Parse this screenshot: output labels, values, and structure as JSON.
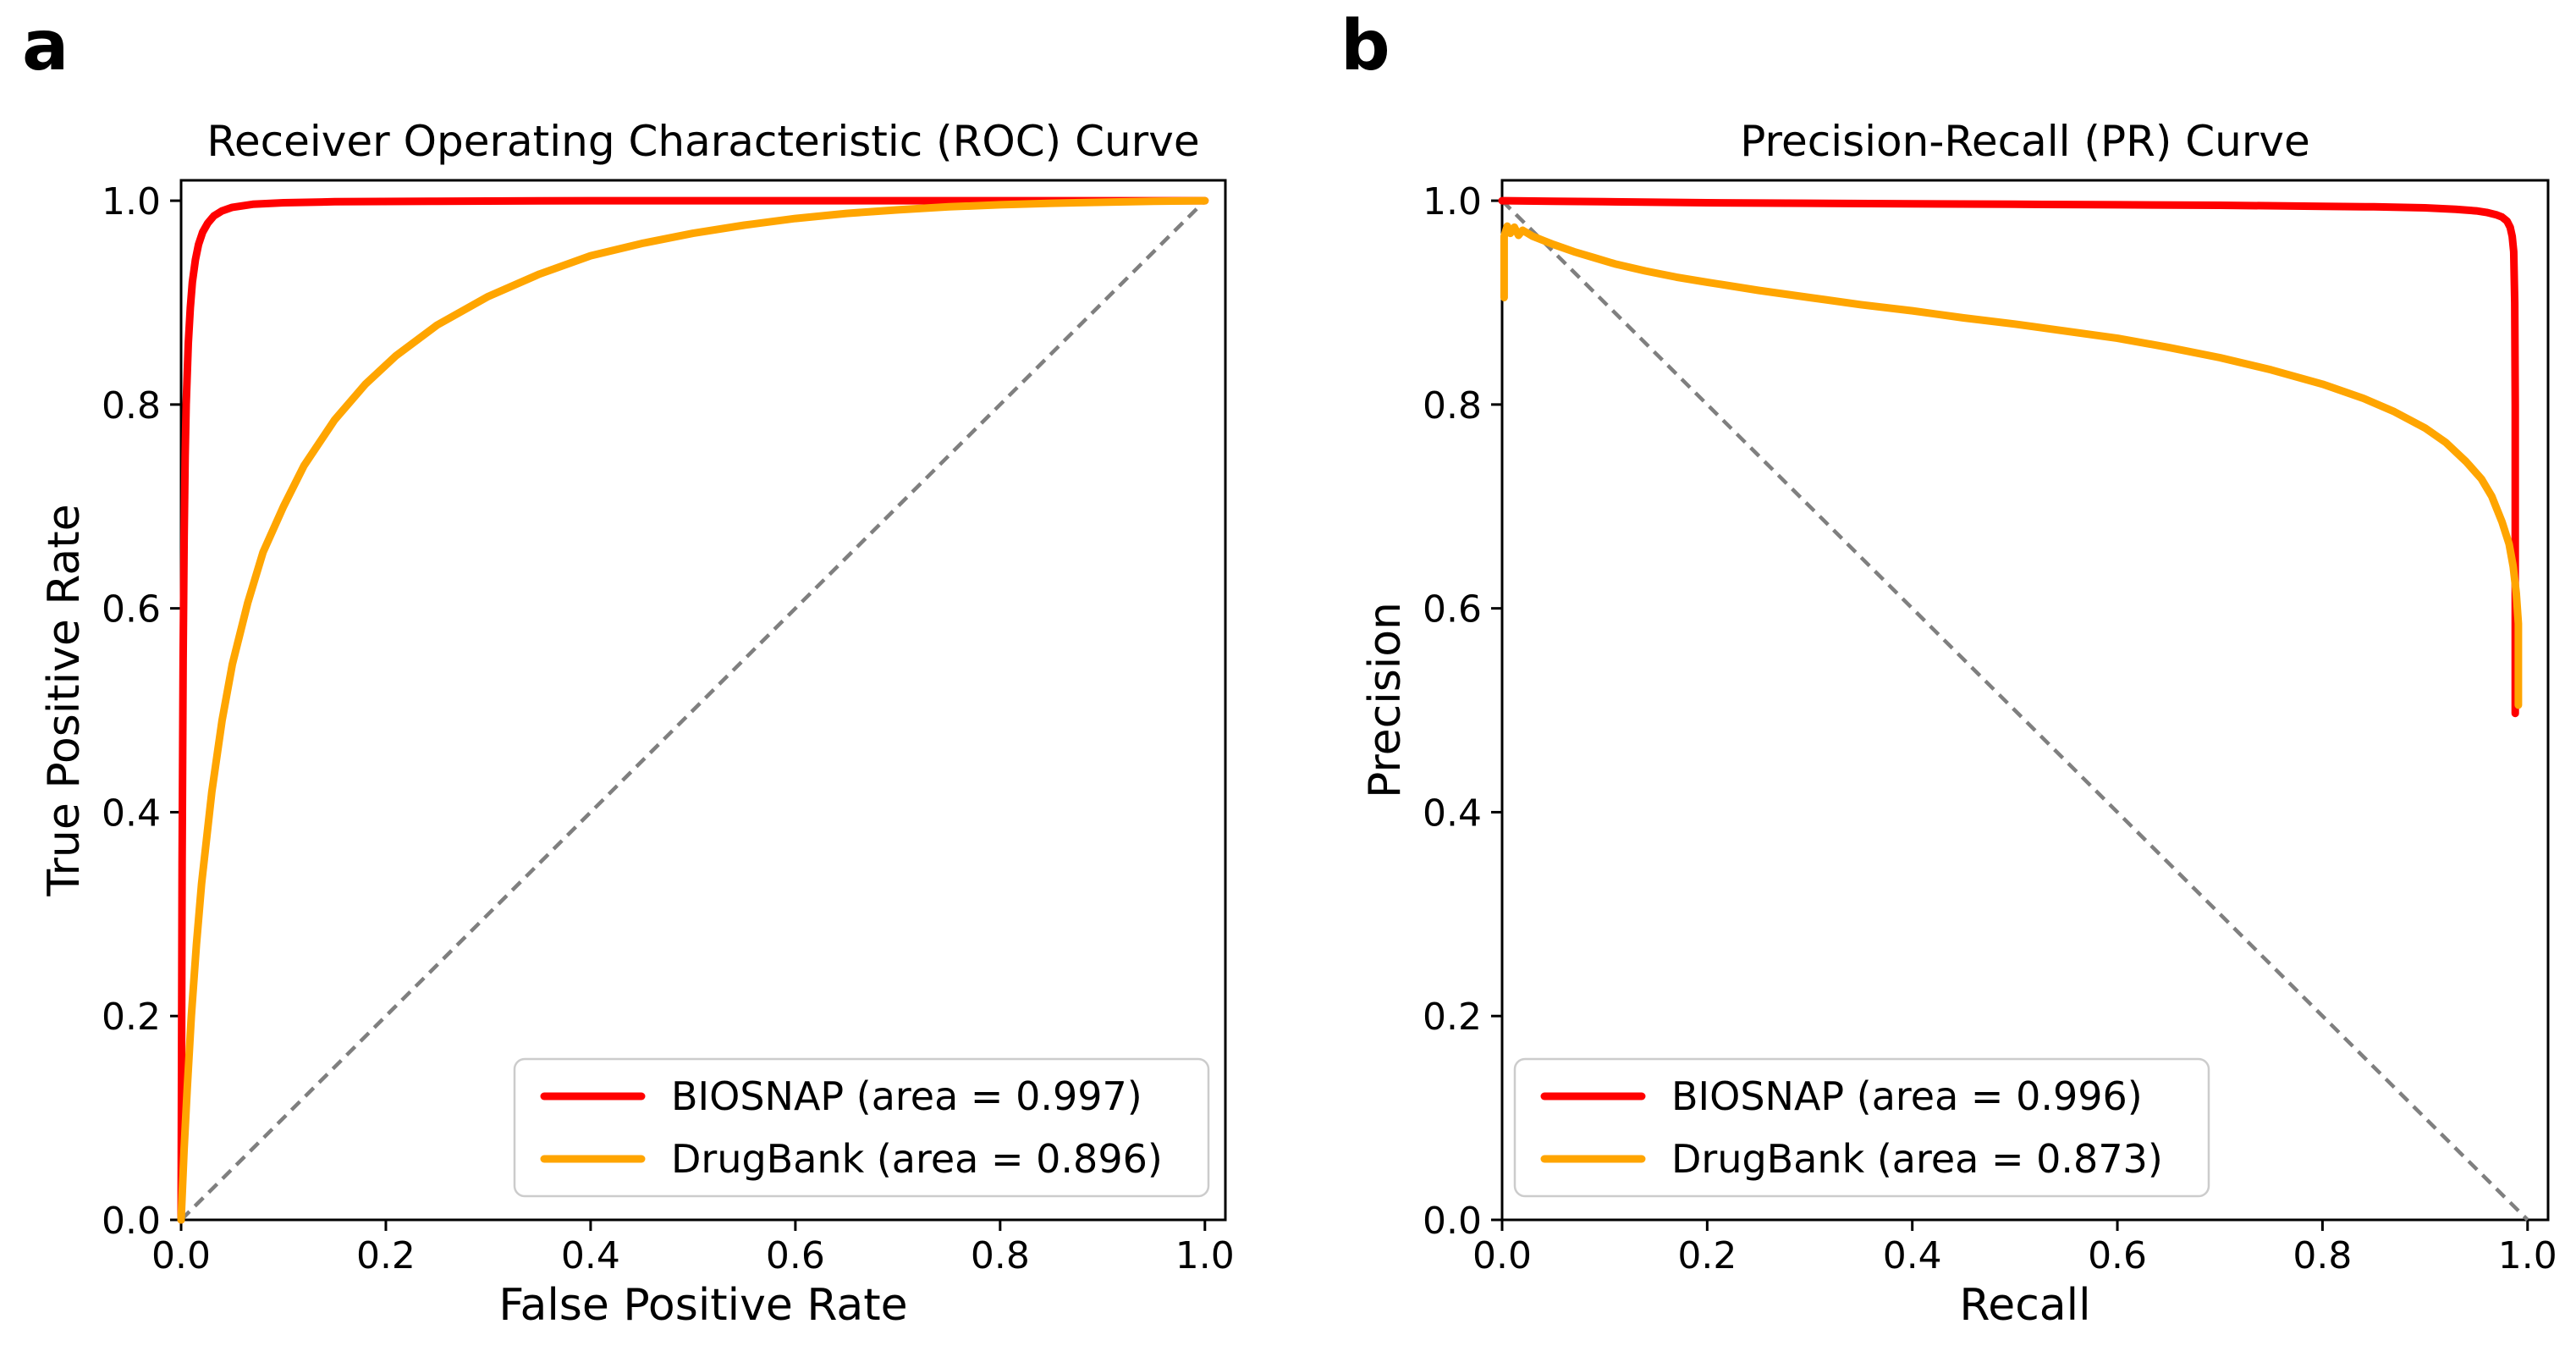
{
  "figure": {
    "background": "#ffffff",
    "panels": [
      {
        "letter": "a"
      },
      {
        "letter": "b"
      }
    ]
  },
  "chart_data": [
    {
      "type": "line",
      "title": "Receiver Operating Characteristic (ROC) Curve",
      "xlabel": "False Positive Rate",
      "ylabel": "True Positive Rate",
      "xlim": [
        0,
        1
      ],
      "ylim": [
        0,
        1
      ],
      "grid": false,
      "legend_position": "lower right",
      "xticks": {
        "values": [
          0.0,
          0.2,
          0.4,
          0.6,
          0.8,
          1.0
        ],
        "labels": [
          "0.0",
          "0.2",
          "0.4",
          "0.6",
          "0.8",
          "1.0"
        ]
      },
      "yticks": {
        "values": [
          0.0,
          0.2,
          0.4,
          0.6,
          0.8,
          1.0
        ],
        "labels": [
          "0.0",
          "0.2",
          "0.4",
          "0.6",
          "0.8",
          "1.0"
        ]
      },
      "series": [
        {
          "key": "chance-diagonal",
          "name": "chance",
          "color": "#7f7f7f",
          "dash": true,
          "legend": false,
          "x": [
            0,
            1
          ],
          "y": [
            0,
            1
          ]
        },
        {
          "key": "biosnap",
          "name": "BIOSNAP (area = 0.997)",
          "color": "#ff0000",
          "dash": false,
          "legend": true,
          "x": [
            0,
            0.001,
            0.002,
            0.003,
            0.004,
            0.005,
            0.007,
            0.009,
            0.011,
            0.014,
            0.017,
            0.021,
            0.026,
            0.032,
            0.04,
            0.05,
            0.07,
            0.1,
            0.15,
            0.25,
            0.4,
            0.6,
            0.8,
            1.0
          ],
          "y": [
            0,
            0.35,
            0.55,
            0.67,
            0.75,
            0.8,
            0.86,
            0.895,
            0.92,
            0.942,
            0.957,
            0.969,
            0.978,
            0.985,
            0.99,
            0.9935,
            0.9965,
            0.998,
            0.999,
            0.9995,
            1.0,
            1.0,
            1.0,
            1.0
          ]
        },
        {
          "key": "drugbank",
          "name": "DrugBank (area = 0.896)",
          "color": "#ffa500",
          "dash": false,
          "legend": true,
          "x": [
            0,
            0.003,
            0.006,
            0.01,
            0.015,
            0.02,
            0.03,
            0.04,
            0.05,
            0.065,
            0.08,
            0.1,
            0.12,
            0.15,
            0.18,
            0.21,
            0.25,
            0.3,
            0.35,
            0.4,
            0.45,
            0.5,
            0.55,
            0.6,
            0.65,
            0.7,
            0.75,
            0.8,
            0.85,
            0.9,
            0.95,
            1.0
          ],
          "y": [
            0,
            0.07,
            0.13,
            0.2,
            0.27,
            0.33,
            0.42,
            0.49,
            0.545,
            0.605,
            0.655,
            0.7,
            0.74,
            0.785,
            0.82,
            0.848,
            0.878,
            0.906,
            0.928,
            0.946,
            0.958,
            0.968,
            0.976,
            0.9825,
            0.9875,
            0.991,
            0.994,
            0.996,
            0.9975,
            0.9985,
            0.9995,
            1.0
          ]
        }
      ]
    },
    {
      "type": "line",
      "title": "Precision-Recall (PR) Curve",
      "xlabel": "Recall",
      "ylabel": "Precision",
      "xlim": [
        0,
        1
      ],
      "ylim": [
        0,
        1
      ],
      "grid": false,
      "legend_position": "lower left",
      "xticks": {
        "values": [
          0.0,
          0.2,
          0.4,
          0.6,
          0.8,
          1.0
        ],
        "labels": [
          "0.0",
          "0.2",
          "0.4",
          "0.6",
          "0.8",
          "1.0"
        ]
      },
      "yticks": {
        "values": [
          0.0,
          0.2,
          0.4,
          0.6,
          0.8,
          1.0
        ],
        "labels": [
          "0.0",
          "0.2",
          "0.4",
          "0.6",
          "0.8",
          "1.0"
        ]
      },
      "series": [
        {
          "key": "chance-diagonal",
          "name": "chance",
          "color": "#7f7f7f",
          "dash": true,
          "legend": false,
          "x": [
            0,
            1
          ],
          "y": [
            1,
            0
          ]
        },
        {
          "key": "biosnap",
          "name": "BIOSNAP (area = 0.996)",
          "color": "#ff0000",
          "dash": false,
          "legend": true,
          "x": [
            0,
            0.05,
            0.1,
            0.2,
            0.3,
            0.4,
            0.5,
            0.6,
            0.7,
            0.8,
            0.85,
            0.9,
            0.93,
            0.95,
            0.96,
            0.97,
            0.975,
            0.98,
            0.983,
            0.985,
            0.9865,
            0.9875,
            0.988,
            0.988,
            0.988,
            0.988
          ],
          "y": [
            1.0,
            0.9995,
            0.999,
            0.998,
            0.9975,
            0.997,
            0.9965,
            0.996,
            0.9955,
            0.9945,
            0.994,
            0.993,
            0.9915,
            0.99,
            0.9885,
            0.986,
            0.984,
            0.98,
            0.974,
            0.965,
            0.95,
            0.9,
            0.8,
            0.7,
            0.6,
            0.497
          ]
        },
        {
          "key": "drugbank",
          "name": "DrugBank (area = 0.873)",
          "color": "#ffa500",
          "dash": false,
          "legend": true,
          "x": [
            0.002,
            0.002,
            0.005,
            0.008,
            0.012,
            0.016,
            0.02,
            0.03,
            0.04,
            0.05,
            0.07,
            0.09,
            0.11,
            0.14,
            0.17,
            0.2,
            0.25,
            0.3,
            0.35,
            0.4,
            0.45,
            0.5,
            0.55,
            0.6,
            0.65,
            0.7,
            0.75,
            0.8,
            0.84,
            0.87,
            0.9,
            0.92,
            0.94,
            0.955,
            0.965,
            0.975,
            0.982,
            0.986,
            0.989,
            0.991,
            0.991,
            0.991
          ],
          "y": [
            0.905,
            0.965,
            0.975,
            0.968,
            0.974,
            0.966,
            0.971,
            0.965,
            0.961,
            0.957,
            0.95,
            0.944,
            0.938,
            0.931,
            0.925,
            0.92,
            0.912,
            0.905,
            0.898,
            0.892,
            0.885,
            0.879,
            0.872,
            0.865,
            0.856,
            0.846,
            0.834,
            0.82,
            0.806,
            0.793,
            0.777,
            0.763,
            0.744,
            0.727,
            0.71,
            0.685,
            0.663,
            0.641,
            0.615,
            0.585,
            0.545,
            0.505
          ]
        }
      ]
    }
  ]
}
